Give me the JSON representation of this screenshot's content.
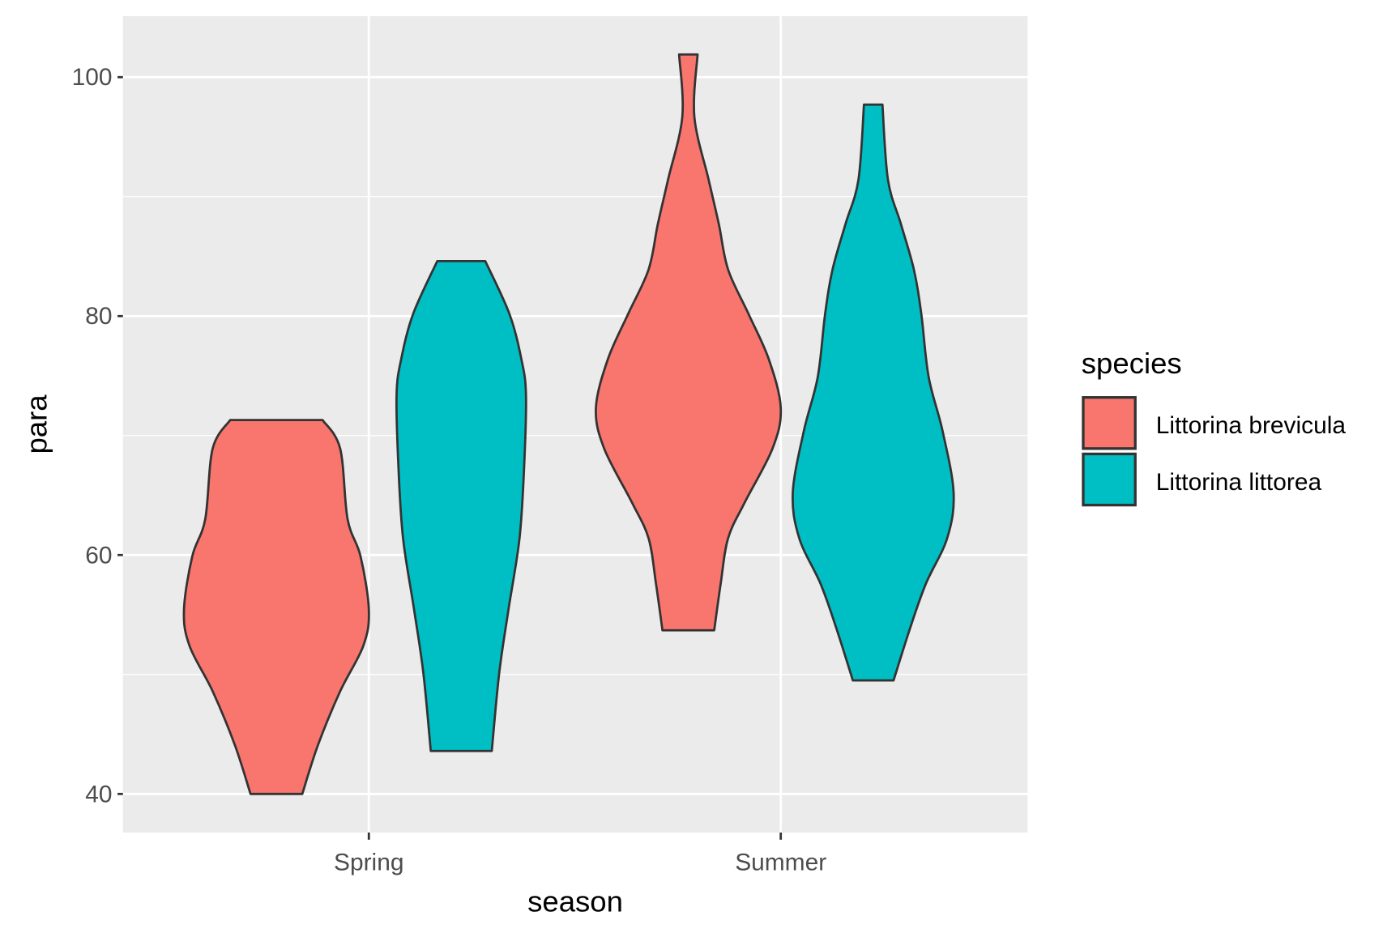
{
  "chart_data": {
    "type": "violin",
    "title": "",
    "xlabel": "season",
    "ylabel": "para",
    "ylim": [
      37,
      105
    ],
    "yticks": [
      "40",
      "60",
      "80",
      "100"
    ],
    "categories": [
      "Spring",
      "Summer"
    ],
    "grid": true,
    "legend": {
      "title": "species",
      "position": "right",
      "entries": [
        "Littorina brevicula",
        "Littorina littorea"
      ]
    },
    "series": [
      {
        "name": "Littorina brevicula",
        "color": "#F8766D",
        "violins": [
          {
            "category": "Spring",
            "profile": [
              [
                71.3,
                0.5
              ],
              [
                68.9,
                0.69
              ],
              [
                63,
                0.77
              ],
              [
                59.9,
                0.91
              ],
              [
                55.4,
                1.0
              ],
              [
                52.4,
                0.94
              ],
              [
                48.6,
                0.69
              ],
              [
                44.1,
                0.45
              ],
              [
                40,
                0.28
              ]
            ]
          },
          {
            "category": "Summer",
            "profile": [
              [
                101.9,
                0.1
              ],
              [
                96.7,
                0.065
              ],
              [
                91.4,
                0.22
              ],
              [
                87.7,
                0.33
              ],
              [
                83.9,
                0.43
              ],
              [
                80.2,
                0.65
              ],
              [
                76.4,
                0.87
              ],
              [
                72.3,
                1.0
              ],
              [
                68.9,
                0.91
              ],
              [
                64.4,
                0.61
              ],
              [
                61.4,
                0.43
              ],
              [
                57.6,
                0.35
              ],
              [
                53.7,
                0.28
              ]
            ]
          }
        ]
      },
      {
        "name": "Littorina littorea",
        "color": "#00BFC4",
        "violins": [
          {
            "category": "Spring",
            "profile": [
              [
                84.6,
                0.26
              ],
              [
                80.2,
                0.52
              ],
              [
                76.4,
                0.65
              ],
              [
                73.4,
                0.7
              ],
              [
                67.4,
                0.68
              ],
              [
                61.4,
                0.63
              ],
              [
                55.4,
                0.51
              ],
              [
                50.1,
                0.41
              ],
              [
                43.6,
                0.33
              ]
            ]
          },
          {
            "category": "Summer",
            "profile": [
              [
                97.7,
                0.1
              ],
              [
                91.4,
                0.16
              ],
              [
                87.7,
                0.3
              ],
              [
                83.9,
                0.44
              ],
              [
                80.2,
                0.52
              ],
              [
                74.9,
                0.6
              ],
              [
                70.4,
                0.75
              ],
              [
                65.2,
                0.87
              ],
              [
                61.4,
                0.8
              ],
              [
                57.6,
                0.57
              ],
              [
                53.9,
                0.4
              ],
              [
                49.5,
                0.22
              ]
            ]
          }
        ]
      }
    ]
  }
}
